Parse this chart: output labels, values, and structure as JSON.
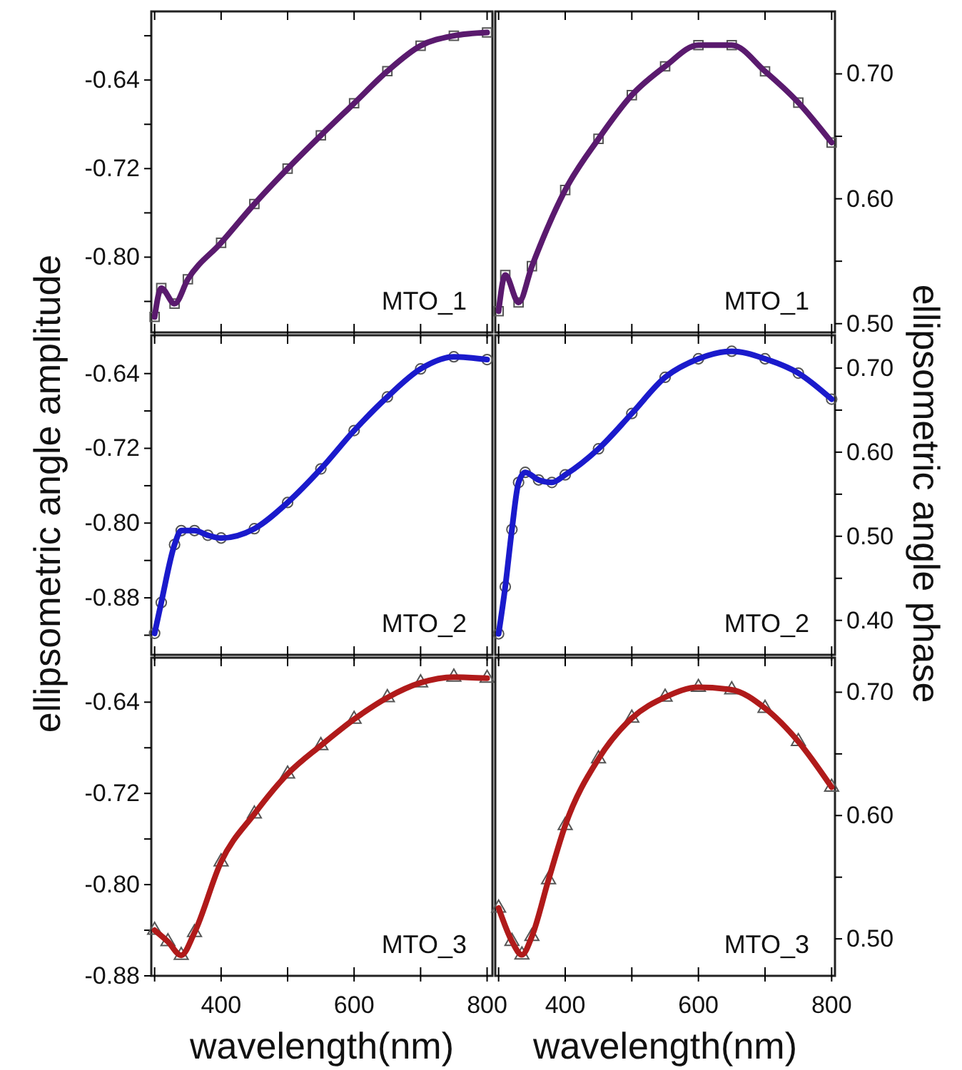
{
  "chart_data": [
    {
      "type": "line",
      "tick_labels": "y",
      "annotations": [
        "MTO_1"
      ],
      "x": [
        300,
        310,
        330,
        350,
        400,
        450,
        500,
        550,
        600,
        650,
        700,
        750,
        800
      ],
      "xlim": [
        295,
        808
      ],
      "xticks": [
        {
          "value": 300,
          "label": null
        },
        400,
        {
          "value": 500,
          "label": null
        },
        600,
        {
          "value": 700,
          "label": null
        },
        800
      ],
      "ylim": [
        -0.868,
        -0.578
      ],
      "yticks": [
        {
          "value": -0.6,
          "label": null
        },
        -0.64,
        {
          "value": -0.68,
          "label": null
        },
        -0.72,
        {
          "value": -0.76,
          "label": null
        },
        {
          "value": -0.8,
          "label": "-0.80"
        },
        {
          "value": -0.84,
          "label": null
        }
      ],
      "series": [
        {
          "type": "scatter",
          "marker": "square",
          "color": "#555555",
          "values": [
            -0.854,
            -0.828,
            -0.842,
            -0.82,
            -0.787,
            -0.752,
            -0.72,
            -0.69,
            -0.661,
            -0.632,
            -0.609,
            -0.6,
            -0.597
          ]
        },
        {
          "marker": "none",
          "color": "#5a1a6e",
          "values": [
            -0.854,
            -0.828,
            -0.842,
            -0.82,
            -0.787,
            -0.752,
            -0.72,
            -0.69,
            -0.661,
            -0.632,
            -0.609,
            -0.6,
            -0.597
          ]
        }
      ]
    },
    {
      "type": "line",
      "tick_labels": "y",
      "annotations": [
        "MTO_1"
      ],
      "x": [
        300,
        310,
        330,
        350,
        400,
        450,
        500,
        550,
        600,
        650,
        700,
        750,
        800
      ],
      "xlim": [
        295,
        805
      ],
      "xticks": [
        {
          "value": 300,
          "label": null
        },
        400,
        {
          "value": 500,
          "label": null
        },
        600,
        {
          "value": 700,
          "label": null
        },
        800
      ],
      "y2lim": [
        0.493,
        0.75
      ],
      "y2ticks": [
        {
          "value": 0.5,
          "label": "0.50"
        },
        {
          "value": 0.55,
          "label": null
        },
        {
          "value": 0.6,
          "label": "0.60"
        },
        {
          "value": 0.65,
          "label": null
        },
        {
          "value": 0.7,
          "label": "0.70"
        }
      ],
      "series": [
        {
          "type": "scatter",
          "marker": "square",
          "axis": "y2",
          "color": "#555555",
          "values": [
            0.51,
            0.539,
            0.517,
            0.546,
            0.607,
            0.648,
            0.683,
            0.706,
            0.723,
            0.723,
            0.702,
            0.677,
            0.645
          ]
        },
        {
          "marker": "none",
          "axis": "y2",
          "color": "#5a1a6e",
          "values": [
            0.51,
            0.539,
            0.517,
            0.546,
            0.607,
            0.648,
            0.683,
            0.706,
            0.723,
            0.723,
            0.702,
            0.677,
            0.645
          ]
        }
      ]
    },
    {
      "type": "line",
      "tick_labels": "y",
      "ylabel": "ellipsometric angle amplitude",
      "annotations": [
        "MTO_2"
      ],
      "x": [
        300,
        310,
        330,
        340,
        360,
        380,
        400,
        450,
        500,
        550,
        600,
        650,
        700,
        750,
        800
      ],
      "xlim": [
        295,
        808
      ],
      "xticks": [
        {
          "value": 300,
          "label": null
        },
        400,
        {
          "value": 500,
          "label": null
        },
        600,
        {
          "value": 700,
          "label": null
        },
        800
      ],
      "ylim": [
        -0.941,
        -0.599
      ],
      "yticks": [
        -0.64,
        {
          "value": -0.68,
          "label": null
        },
        -0.72,
        {
          "value": -0.76,
          "label": null
        },
        {
          "value": -0.8,
          "label": "-0.80"
        },
        {
          "value": -0.84,
          "label": null
        },
        -0.88,
        {
          "value": -0.92,
          "label": null
        }
      ],
      "series": [
        {
          "type": "scatter",
          "marker": "circle",
          "color": "#555555",
          "values": [
            -0.918,
            -0.885,
            -0.823,
            -0.808,
            -0.808,
            -0.813,
            -0.816,
            -0.806,
            -0.778,
            -0.742,
            -0.701,
            -0.665,
            -0.635,
            -0.622,
            -0.625
          ]
        },
        {
          "marker": "none",
          "color": "#1a1acc",
          "values": [
            -0.918,
            -0.885,
            -0.823,
            -0.808,
            -0.808,
            -0.813,
            -0.816,
            -0.806,
            -0.778,
            -0.742,
            -0.701,
            -0.665,
            -0.635,
            -0.622,
            -0.625
          ]
        }
      ]
    },
    {
      "type": "line",
      "tick_labels": "y",
      "y2label": "ellipsometric angle phase",
      "annotations": [
        "MTO_2"
      ],
      "x": [
        300,
        310,
        320,
        330,
        340,
        360,
        380,
        400,
        450,
        500,
        550,
        600,
        650,
        700,
        750,
        800
      ],
      "xlim": [
        295,
        805
      ],
      "xticks": [
        {
          "value": 300,
          "label": null
        },
        400,
        {
          "value": 500,
          "label": null
        },
        600,
        {
          "value": 700,
          "label": null
        },
        800
      ],
      "y2lim": [
        0.359,
        0.739
      ],
      "y2ticks": [
        {
          "value": 0.4,
          "label": "0.40"
        },
        {
          "value": 0.45,
          "label": null
        },
        {
          "value": 0.5,
          "label": "0.50"
        },
        {
          "value": 0.55,
          "label": null
        },
        {
          "value": 0.6,
          "label": "0.60"
        },
        {
          "value": 0.65,
          "label": null
        },
        {
          "value": 0.7,
          "label": "0.70"
        }
      ],
      "series": [
        {
          "type": "scatter",
          "marker": "circle",
          "axis": "y2",
          "color": "#555555",
          "values": [
            0.384,
            0.44,
            0.508,
            0.564,
            0.576,
            0.567,
            0.564,
            0.573,
            0.604,
            0.646,
            0.689,
            0.711,
            0.72,
            0.711,
            0.694,
            0.663
          ]
        },
        {
          "marker": "none",
          "axis": "y2",
          "color": "#1a1acc",
          "values": [
            0.384,
            0.44,
            0.508,
            0.564,
            0.576,
            0.567,
            0.564,
            0.573,
            0.604,
            0.646,
            0.689,
            0.711,
            0.72,
            0.711,
            0.694,
            0.663
          ]
        }
      ]
    },
    {
      "type": "line",
      "xlabel": "wavelength(nm)",
      "annotations": [
        "MTO_3"
      ],
      "x": [
        300,
        320,
        340,
        360,
        400,
        450,
        500,
        550,
        600,
        650,
        700,
        750,
        800
      ],
      "xlim": [
        295,
        808
      ],
      "xticks": [
        {
          "value": 300,
          "label": null
        },
        400,
        {
          "value": 500,
          "label": null
        },
        600,
        {
          "value": 700,
          "label": null
        },
        800
      ],
      "ylim": [
        -0.88,
        -0.601
      ],
      "yticks": [
        -0.64,
        {
          "value": -0.68,
          "label": null
        },
        -0.72,
        {
          "value": -0.76,
          "label": null
        },
        {
          "value": -0.8,
          "label": "-0.80"
        },
        {
          "value": -0.84,
          "label": null
        },
        -0.88
      ],
      "series": [
        {
          "type": "scatter",
          "marker": "triangle",
          "color": "#555555",
          "values": [
            -0.84,
            -0.85,
            -0.862,
            -0.842,
            -0.78,
            -0.738,
            -0.703,
            -0.678,
            -0.655,
            -0.636,
            -0.623,
            -0.618,
            -0.619
          ]
        },
        {
          "marker": "none",
          "color": "#b01a1a",
          "values": [
            -0.84,
            -0.85,
            -0.862,
            -0.842,
            -0.78,
            -0.738,
            -0.703,
            -0.678,
            -0.655,
            -0.636,
            -0.623,
            -0.618,
            -0.619
          ]
        }
      ]
    },
    {
      "type": "line",
      "xlabel": "wavelength(nm)",
      "annotations": [
        "MTO_3"
      ],
      "x": [
        300,
        320,
        335,
        350,
        375,
        400,
        450,
        500,
        550,
        600,
        650,
        700,
        750,
        800
      ],
      "xlim": [
        295,
        805
      ],
      "xticks": [
        {
          "value": 300,
          "label": null
        },
        400,
        {
          "value": 500,
          "label": null
        },
        600,
        {
          "value": 700,
          "label": null
        },
        800
      ],
      "y2lim": [
        0.47,
        0.728
      ],
      "y2ticks": [
        {
          "value": 0.5,
          "label": "0.50"
        },
        {
          "value": 0.55,
          "label": null
        },
        {
          "value": 0.6,
          "label": "0.60"
        },
        {
          "value": 0.65,
          "label": null
        },
        {
          "value": 0.7,
          "label": "0.70"
        }
      ],
      "series": [
        {
          "type": "scatter",
          "marker": "triangle",
          "axis": "y2",
          "color": "#555555",
          "values": [
            0.525,
            0.498,
            0.487,
            0.502,
            0.548,
            0.592,
            0.646,
            0.679,
            0.696,
            0.704,
            0.702,
            0.687,
            0.66,
            0.623
          ]
        },
        {
          "marker": "none",
          "axis": "y2",
          "color": "#b01a1a",
          "values": [
            0.525,
            0.498,
            0.487,
            0.502,
            0.548,
            0.592,
            0.646,
            0.679,
            0.696,
            0.704,
            0.702,
            0.687,
            0.66,
            0.623
          ]
        }
      ]
    }
  ]
}
